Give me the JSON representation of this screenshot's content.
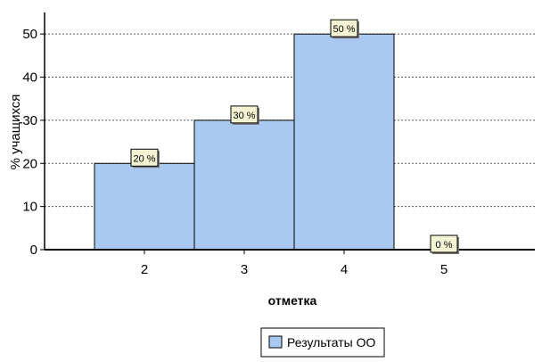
{
  "chart_data": {
    "type": "bar",
    "categories": [
      "2",
      "3",
      "4",
      "5"
    ],
    "series": [
      {
        "name": "Результаты ОО",
        "values": [
          20,
          30,
          50,
          0
        ],
        "color": "#a9c9f0"
      }
    ],
    "data_labels": [
      "20 %",
      "30 %",
      "50 %",
      "0 %"
    ],
    "ylabel": "% учащихся",
    "xlabel": "отметка",
    "ylim": [
      0,
      55
    ],
    "yticks": [
      0,
      10,
      20,
      30,
      40,
      50
    ],
    "grid": true,
    "legend_position": "bottom-center",
    "label_box_color": "#f4f4d4",
    "bar_edge_color": "#000000",
    "grid_color": "#555555"
  }
}
